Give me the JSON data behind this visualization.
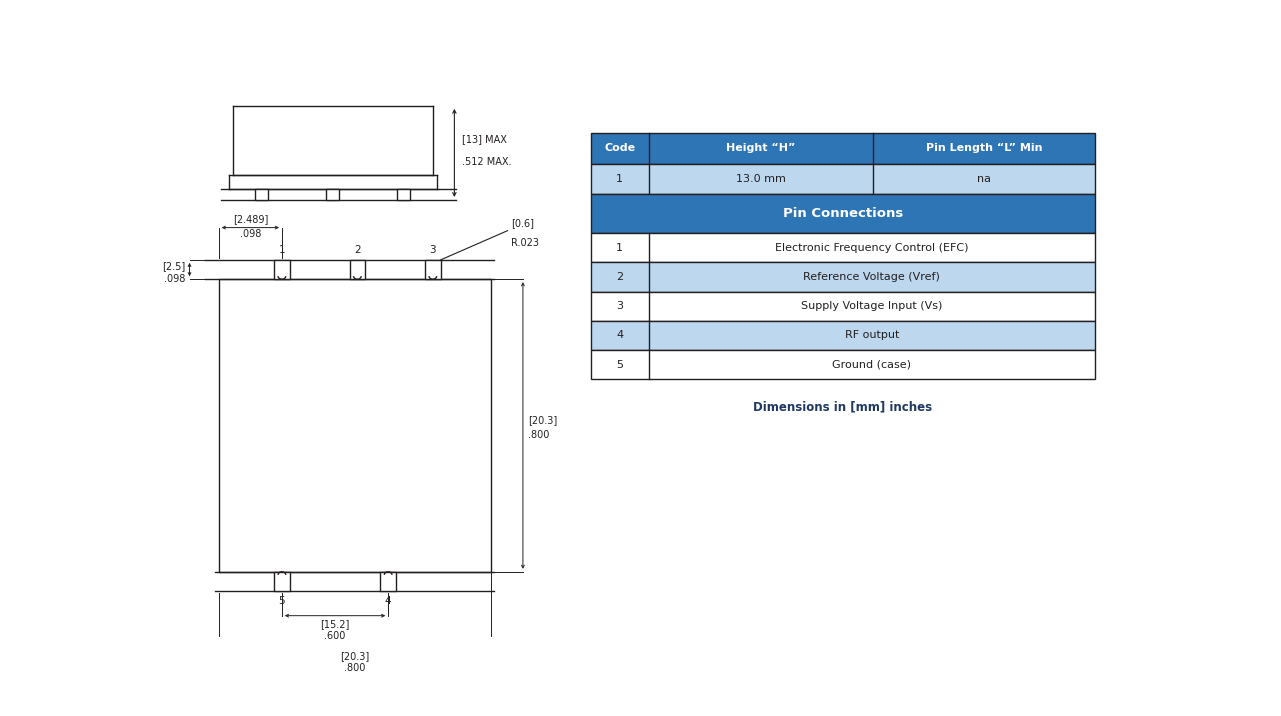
{
  "bg_color": "#ffffff",
  "line_color": "#231f20",
  "table_header_bg": "#2e75b6",
  "table_header_fg": "#ffffff",
  "table_light_bg": "#bdd7ee",
  "table_white_bg": "#ffffff",
  "table_border": "#231f20",
  "dim_text_color": "#1f3864",
  "pin_connections": [
    [
      "1",
      "Electronic Frequency Control (EFC)"
    ],
    [
      "2",
      "Reference Voltage (Vref)"
    ],
    [
      "3",
      "Supply Voltage Input (Vs)"
    ],
    [
      "4",
      "RF output"
    ],
    [
      "5",
      "Ground (case)"
    ]
  ],
  "dim_note": "Dimensions in [mm] inches"
}
